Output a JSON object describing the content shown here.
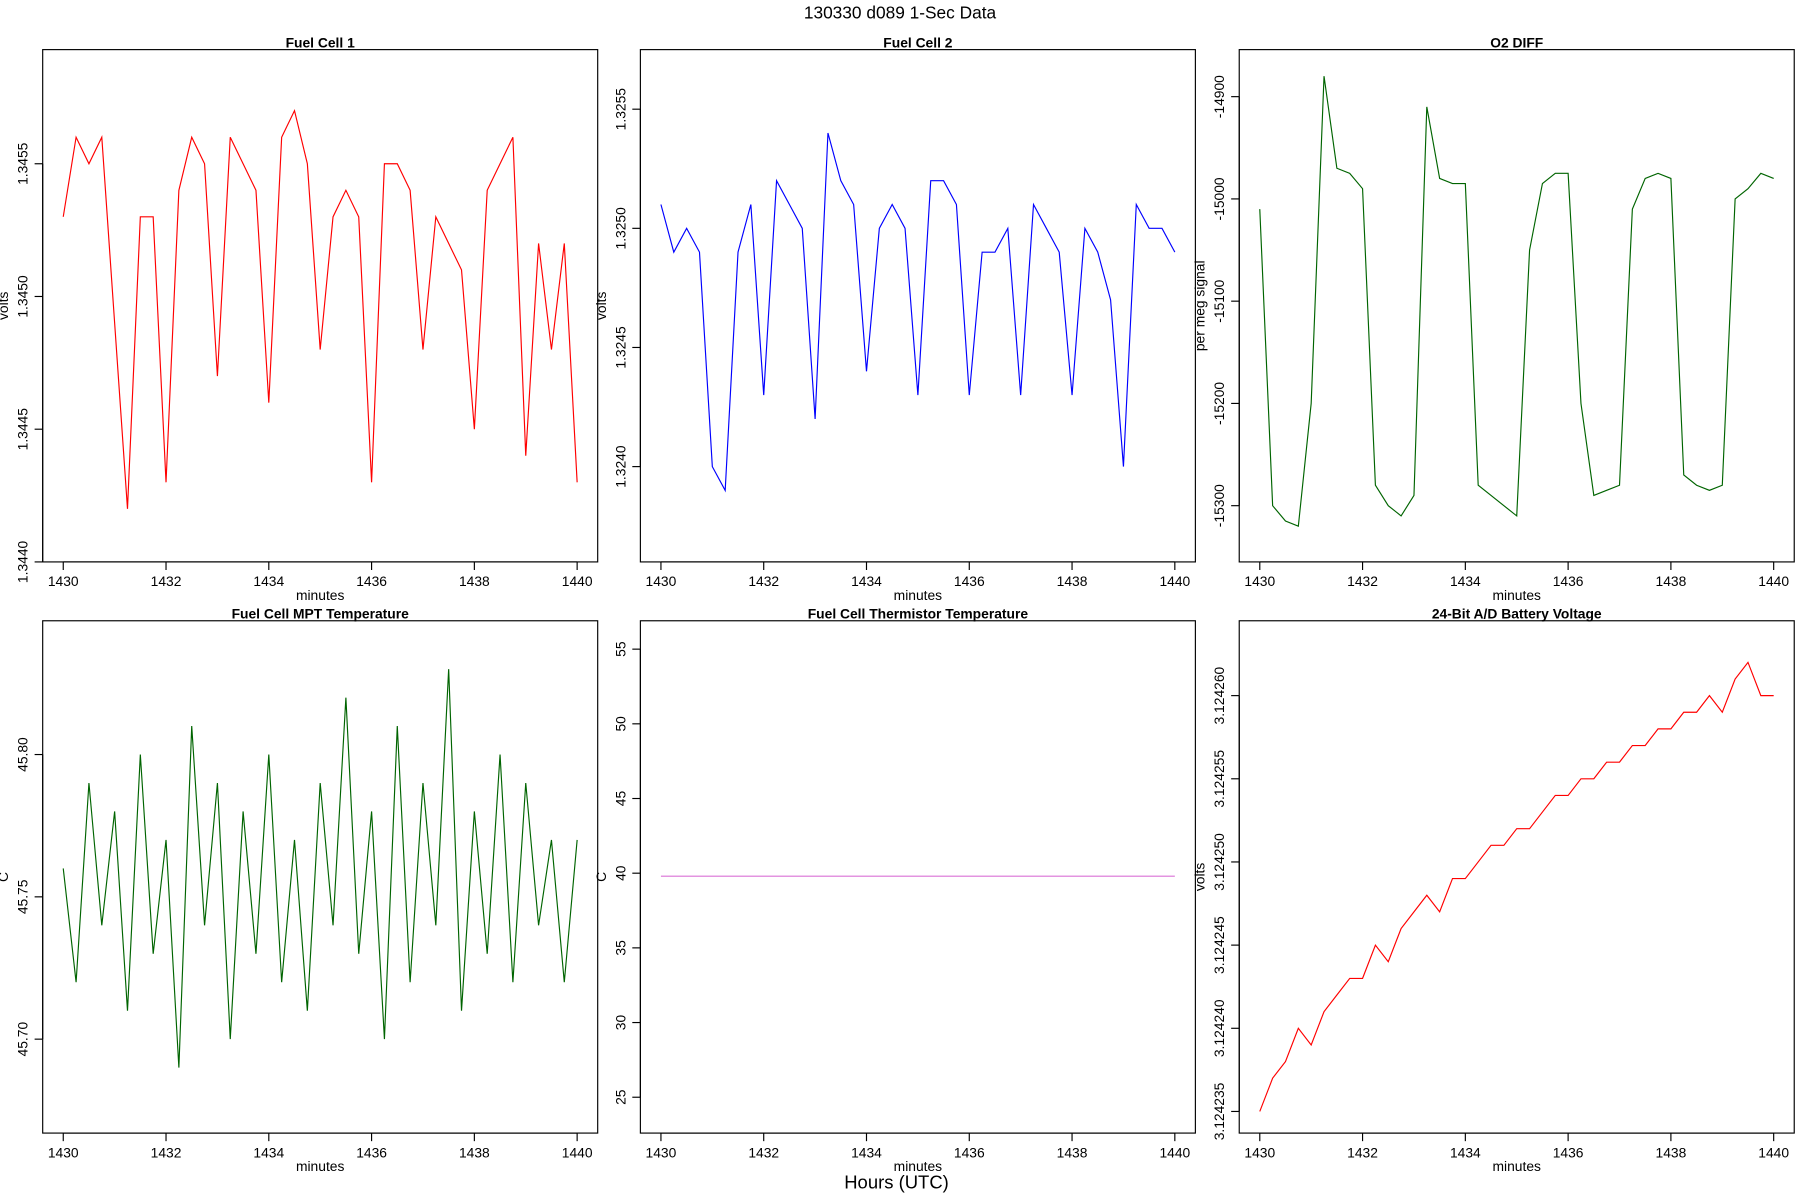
{
  "title": "130330   d089   1-Sec Data",
  "xlabel": "Hours (UTC)",
  "chart_data": [
    {
      "type": "line",
      "title": "Fuel Cell 1",
      "xlabel": "minutes",
      "ylabel": "volts",
      "x": [
        1430,
        1430.25,
        1430.5,
        1430.75,
        1431,
        1431.25,
        1431.5,
        1431.75,
        1432,
        1432.25,
        1432.5,
        1432.75,
        1433,
        1433.25,
        1433.5,
        1433.75,
        1434,
        1434.25,
        1434.5,
        1434.75,
        1435,
        1435.25,
        1435.5,
        1435.75,
        1436,
        1436.25,
        1436.5,
        1436.75,
        1437,
        1437.25,
        1437.5,
        1437.75,
        1438,
        1438.25,
        1438.5,
        1438.75,
        1439,
        1439.25,
        1439.5,
        1439.75,
        1440
      ],
      "series": [
        {
          "color": "#ff0000",
          "values": [
            1.3453,
            1.3456,
            1.3455,
            1.3456,
            1.3449,
            1.3442,
            1.3453,
            1.3453,
            1.3443,
            1.3454,
            1.3456,
            1.3455,
            1.3447,
            1.3456,
            1.3455,
            1.3454,
            1.3446,
            1.3456,
            1.3457,
            1.3455,
            1.3448,
            1.3453,
            1.3454,
            1.3453,
            1.3443,
            1.3455,
            1.3455,
            1.3454,
            1.3448,
            1.3453,
            1.3452,
            1.3451,
            1.3445,
            1.3454,
            1.3455,
            1.3456,
            1.3444,
            1.3452,
            1.3448,
            1.3452,
            1.3443
          ]
        }
      ],
      "xlim": [
        1429.6,
        1440.4
      ],
      "ylim": [
        1.344,
        1.34593
      ],
      "xticks": [
        1430,
        1432,
        1434,
        1436,
        1438,
        1440
      ],
      "yticks": [
        {
          "value": 1.344,
          "label": "1.3440"
        },
        1.3445,
        {
          "value": 1.345,
          "label": "1.3450"
        },
        1.3455
      ]
    },
    {
      "type": "line",
      "title": "Fuel Cell 2",
      "xlabel": "minutes",
      "ylabel": "volts",
      "x": [
        1430,
        1430.25,
        1430.5,
        1430.75,
        1431,
        1431.25,
        1431.5,
        1431.75,
        1432,
        1432.25,
        1432.5,
        1432.75,
        1433,
        1433.25,
        1433.5,
        1433.75,
        1434,
        1434.25,
        1434.5,
        1434.75,
        1435,
        1435.25,
        1435.5,
        1435.75,
        1436,
        1436.25,
        1436.5,
        1436.75,
        1437,
        1437.25,
        1437.5,
        1437.75,
        1438,
        1438.25,
        1438.5,
        1438.75,
        1439,
        1439.25,
        1439.5,
        1439.75,
        1440
      ],
      "series": [
        {
          "color": "#0000ff",
          "values": [
            1.3251,
            1.3249,
            1.325,
            1.3249,
            1.324,
            1.3239,
            1.3249,
            1.3251,
            1.3243,
            1.3252,
            1.3251,
            1.325,
            1.3242,
            1.3254,
            1.3252,
            1.3251,
            1.3244,
            1.325,
            1.3251,
            1.325,
            1.3243,
            1.3252,
            1.3252,
            1.3251,
            1.3243,
            1.3249,
            1.3249,
            1.325,
            1.3243,
            1.3251,
            1.325,
            1.3249,
            1.3243,
            1.325,
            1.3249,
            1.3247,
            1.324,
            1.3251,
            1.325,
            1.325,
            1.3249
          ]
        }
      ],
      "xlim": [
        1429.6,
        1440.4
      ],
      "ylim": [
        1.3236,
        1.32575
      ],
      "xticks": [
        1430,
        1432,
        1434,
        1436,
        1438,
        1440
      ],
      "yticks": [
        {
          "value": 1.324,
          "label": "1.3240"
        },
        1.3245,
        {
          "value": 1.325,
          "label": "1.3250"
        },
        1.3255
      ]
    },
    {
      "type": "line",
      "title": "O2 DIFF",
      "xlabel": "minutes",
      "ylabel": "per meg signal",
      "x": [
        1430,
        1430.25,
        1430.5,
        1430.75,
        1431,
        1431.25,
        1431.5,
        1431.75,
        1432,
        1432.25,
        1432.5,
        1432.75,
        1433,
        1433.25,
        1433.5,
        1433.75,
        1434,
        1434.25,
        1434.5,
        1434.75,
        1435,
        1435.25,
        1435.5,
        1435.75,
        1436,
        1436.25,
        1436.5,
        1436.75,
        1437,
        1437.25,
        1437.5,
        1437.75,
        1438,
        1438.25,
        1438.5,
        1438.75,
        1439,
        1439.25,
        1439.5,
        1439.75,
        1440
      ],
      "series": [
        {
          "color": "#006400",
          "values": [
            -15010,
            -15300,
            -15315,
            -15320,
            -15200,
            -14880,
            -14970,
            -14975,
            -14990,
            -15280,
            -15300,
            -15310,
            -15290,
            -14910,
            -14980,
            -14985,
            -14985,
            -15280,
            -15290,
            -15300,
            -15310,
            -15050,
            -14985,
            -14975,
            -14975,
            -15200,
            -15290,
            -15285,
            -15280,
            -15010,
            -14980,
            -14975,
            -14980,
            -15270,
            -15280,
            -15285,
            -15280,
            -15000,
            -14990,
            -14975,
            -14980
          ]
        }
      ],
      "xlim": [
        1429.6,
        1440.4
      ],
      "ylim": [
        -15355,
        -14854
      ],
      "xticks": [
        1430,
        1432,
        1434,
        1436,
        1438,
        1440
      ],
      "yticks": [
        -15300,
        -15200,
        -15100,
        -15000,
        -14900
      ]
    },
    {
      "type": "line",
      "title": "Fuel Cell MPT Temperature",
      "xlabel": "minutes",
      "ylabel": "C",
      "x": [
        1430,
        1430.25,
        1430.5,
        1430.75,
        1431,
        1431.25,
        1431.5,
        1431.75,
        1432,
        1432.25,
        1432.5,
        1432.75,
        1433,
        1433.25,
        1433.5,
        1433.75,
        1434,
        1434.25,
        1434.5,
        1434.75,
        1435,
        1435.25,
        1435.5,
        1435.75,
        1436,
        1436.25,
        1436.5,
        1436.75,
        1437,
        1437.25,
        1437.5,
        1437.75,
        1438,
        1438.25,
        1438.5,
        1438.75,
        1439,
        1439.25,
        1439.5,
        1439.75,
        1440
      ],
      "series": [
        {
          "color": "#006400",
          "values": [
            45.76,
            45.72,
            45.79,
            45.74,
            45.78,
            45.71,
            45.8,
            45.73,
            45.77,
            45.69,
            45.81,
            45.74,
            45.79,
            45.7,
            45.78,
            45.73,
            45.8,
            45.72,
            45.77,
            45.71,
            45.79,
            45.74,
            45.82,
            45.73,
            45.78,
            45.7,
            45.81,
            45.72,
            45.79,
            45.74,
            45.83,
            45.71,
            45.78,
            45.73,
            45.8,
            45.72,
            45.79,
            45.74,
            45.77,
            45.72,
            45.77
          ]
        }
      ],
      "xlim": [
        1429.6,
        1440.4
      ],
      "ylim": [
        45.667,
        45.847
      ],
      "xticks": [
        1430,
        1432,
        1434,
        1436,
        1438,
        1440
      ],
      "yticks": [
        {
          "value": 45.7,
          "label": "45.70"
        },
        45.75,
        {
          "value": 45.8,
          "label": "45.80"
        }
      ]
    },
    {
      "type": "line",
      "title": "Fuel Cell Thermistor Temperature",
      "xlabel": "minutes",
      "ylabel": "C",
      "x": [
        1430,
        1440
      ],
      "series": [
        {
          "color": "#da70d6",
          "values": [
            39.8,
            39.8
          ]
        }
      ],
      "xlim": [
        1429.6,
        1440.4
      ],
      "ylim": [
        22.6,
        56.9
      ],
      "xticks": [
        1430,
        1432,
        1434,
        1436,
        1438,
        1440
      ],
      "yticks": [
        25,
        30,
        35,
        40,
        45,
        50,
        55
      ]
    },
    {
      "type": "line",
      "title": "24-Bit A/D Battery Voltage",
      "xlabel": "minutes",
      "ylabel": "volts",
      "x": [
        1430,
        1430.25,
        1430.5,
        1430.75,
        1431,
        1431.25,
        1431.5,
        1431.75,
        1432,
        1432.25,
        1432.5,
        1432.75,
        1433,
        1433.25,
        1433.5,
        1433.75,
        1434,
        1434.25,
        1434.5,
        1434.75,
        1435,
        1435.25,
        1435.5,
        1435.75,
        1436,
        1436.25,
        1436.5,
        1436.75,
        1437,
        1437.25,
        1437.5,
        1437.75,
        1438,
        1438.25,
        1438.5,
        1438.75,
        1439,
        1439.25,
        1439.5,
        1439.75,
        1440
      ],
      "series": [
        {
          "color": "#ff0000",
          "values": [
            3.124235,
            3.124237,
            3.124238,
            3.12424,
            3.124239,
            3.124241,
            3.124242,
            3.124243,
            3.124243,
            3.124245,
            3.124244,
            3.124246,
            3.124247,
            3.124248,
            3.124247,
            3.124249,
            3.124249,
            3.12425,
            3.124251,
            3.124251,
            3.124252,
            3.124252,
            3.124253,
            3.124254,
            3.124254,
            3.124255,
            3.124255,
            3.124256,
            3.124256,
            3.124257,
            3.124257,
            3.124258,
            3.124258,
            3.124259,
            3.124259,
            3.12426,
            3.124259,
            3.124261,
            3.124262,
            3.12426,
            3.12426
          ]
        }
      ],
      "xlim": [
        1429.6,
        1440.4
      ],
      "ylim": [
        3.1242337,
        3.1242645
      ],
      "xticks": [
        1430,
        1432,
        1434,
        1436,
        1438,
        1440
      ],
      "yticks": [
        {
          "value": 3.124235,
          "label": "3.124235"
        },
        {
          "value": 3.12424,
          "label": "3.124240"
        },
        {
          "value": 3.124245,
          "label": "3.124245"
        },
        {
          "value": 3.12425,
          "label": "3.124250"
        },
        {
          "value": 3.124255,
          "label": "3.124255"
        },
        {
          "value": 3.12426,
          "label": "3.124260"
        }
      ]
    }
  ]
}
